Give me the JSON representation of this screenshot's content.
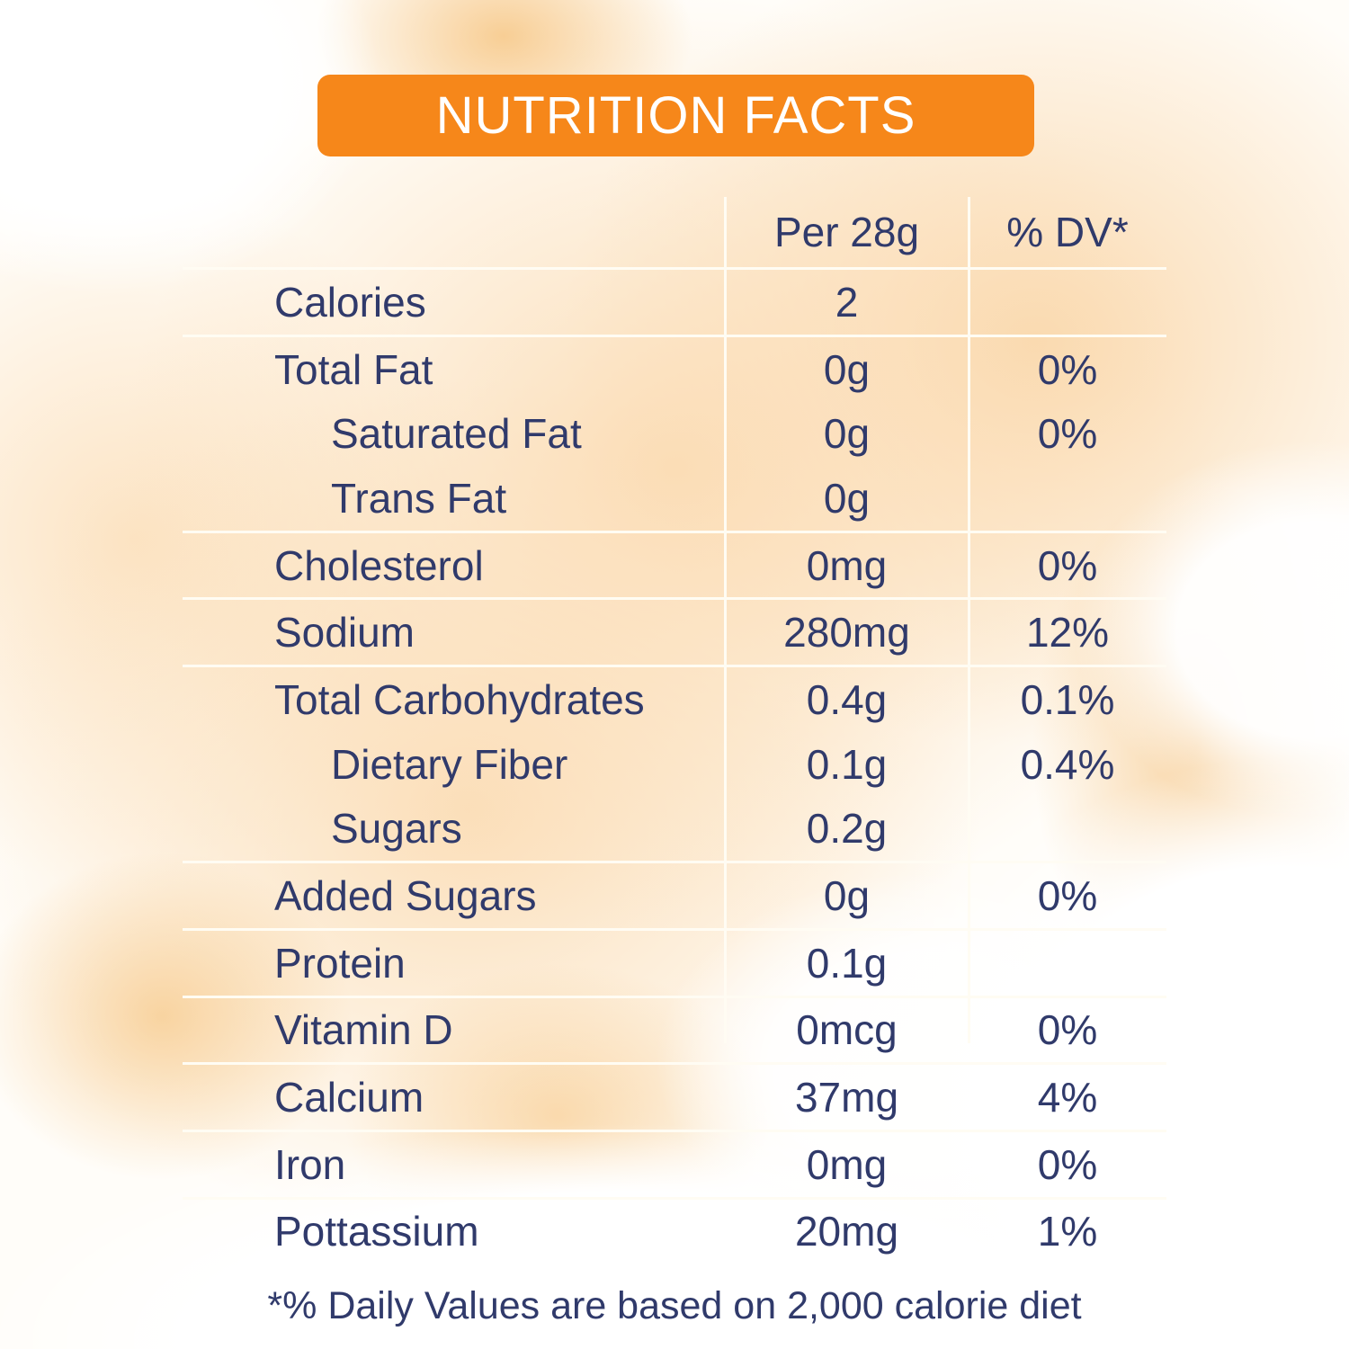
{
  "title": "NUTRITION FACTS",
  "table": {
    "col_headers": {
      "amount": "Per 28g",
      "dv": "% DV*"
    },
    "rows": [
      {
        "label": "Calories",
        "amount": "2",
        "dv": "",
        "indent": false
      },
      {
        "label": "Total Fat",
        "amount": "0g",
        "dv": "0%",
        "indent": false
      },
      {
        "label": "Saturated Fat",
        "amount": "0g",
        "dv": "0%",
        "indent": true
      },
      {
        "label": "Trans Fat",
        "amount": "0g",
        "dv": "",
        "indent": true
      },
      {
        "label": "Cholesterol",
        "amount": "0mg",
        "dv": "0%",
        "indent": false
      },
      {
        "label": "Sodium",
        "amount": "280mg",
        "dv": "12%",
        "indent": false
      },
      {
        "label": "Total Carbohydrates",
        "amount": "0.4g",
        "dv": "0.1%",
        "indent": false
      },
      {
        "label": "Dietary Fiber",
        "amount": "0.1g",
        "dv": "0.4%",
        "indent": true
      },
      {
        "label": "Sugars",
        "amount": "0.2g",
        "dv": "",
        "indent": true
      },
      {
        "label": "Added Sugars",
        "amount": "0g",
        "dv": "0%",
        "indent": false
      },
      {
        "label": "Protein",
        "amount": "0.1g",
        "dv": "",
        "indent": false
      },
      {
        "label": "Vitamin D",
        "amount": "0mcg",
        "dv": "0%",
        "indent": false
      },
      {
        "label": "Calcium",
        "amount": "37mg",
        "dv": "4%",
        "indent": false
      },
      {
        "label": "Iron",
        "amount": "0mg",
        "dv": "0%",
        "indent": false
      },
      {
        "label": "Pottassium",
        "amount": "20mg",
        "dv": "1%",
        "indent": false
      }
    ]
  },
  "footnote": "*% Daily Values are based on 2,000 calorie diet",
  "colors": {
    "banner": "#F6871A",
    "text": "#303A6B",
    "line": "#FFFCF3"
  }
}
